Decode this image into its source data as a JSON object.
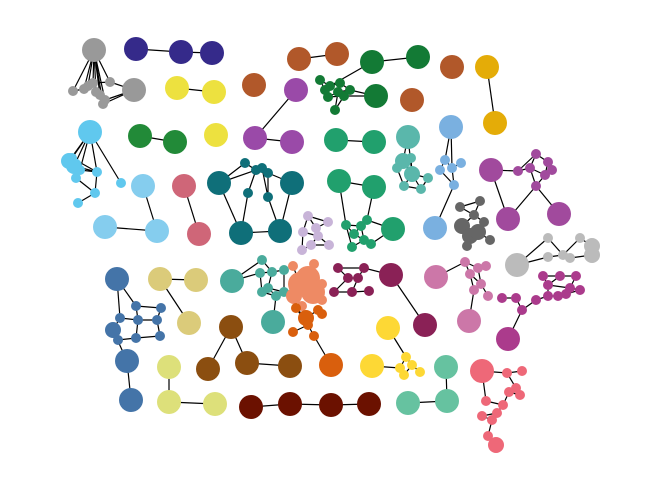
{
  "graph": {
    "directed": false,
    "edge_color": "#000000",
    "background": "#ffffff",
    "components": [
      {
        "name": "gray-star",
        "color": "#999999"
      },
      {
        "name": "navy-chain",
        "color": "#352a8a"
      },
      {
        "name": "yellow-pair",
        "color": "#ede13f"
      },
      {
        "name": "rust-chain",
        "color": "#b1582a"
      },
      {
        "name": "green-cluster",
        "color": "#137a35"
      },
      {
        "name": "amber-pair",
        "color": "#e4ac08"
      },
      {
        "name": "cyan-cluster",
        "color": "#60c8ee"
      },
      {
        "name": "forest-pair",
        "color": "#228a38"
      },
      {
        "name": "purple-chain",
        "color": "#9a4aa8"
      },
      {
        "name": "sea-green-pair",
        "color": "#21a06d"
      },
      {
        "name": "teal-light-cluster",
        "color": "#5ab7ab"
      },
      {
        "name": "sky-cluster",
        "color": "#7ab0e0"
      },
      {
        "name": "magenta-cluster",
        "color": "#a14a9d"
      },
      {
        "name": "light-blue-pair",
        "color": "#85cdee"
      },
      {
        "name": "rose-pair",
        "color": "#cf6678"
      },
      {
        "name": "teal-dark-cluster",
        "color": "#0f6f79"
      },
      {
        "name": "lavender-cluster",
        "color": "#c8b4d8"
      },
      {
        "name": "green-mesh",
        "color": "#21a06d"
      },
      {
        "name": "dark-gray-cluster",
        "color": "#666666"
      },
      {
        "name": "steel-blue-cluster",
        "color": "#4474a8"
      },
      {
        "name": "khaki-chain",
        "color": "#dbcb7a"
      },
      {
        "name": "mint-cluster",
        "color": "#4aab9c"
      },
      {
        "name": "salmon-hub",
        "color": "#ee8a64"
      },
      {
        "name": "maroon-cluster",
        "color": "#8a2156"
      },
      {
        "name": "pink-cluster",
        "color": "#cc77a8"
      },
      {
        "name": "silver-cluster",
        "color": "#bbbbbb"
      },
      {
        "name": "orchid-cluster",
        "color": "#ab3b8c"
      },
      {
        "name": "brown-chain",
        "color": "#8b4e10"
      },
      {
        "name": "orange-cluster",
        "color": "#d95f0d"
      },
      {
        "name": "gold-cluster",
        "color": "#fdd835"
      },
      {
        "name": "lime-chain",
        "color": "#dde07a"
      },
      {
        "name": "dark-red-chain",
        "color": "#6b1100"
      },
      {
        "name": "aquamarine-chain",
        "color": "#66c2a0"
      },
      {
        "name": "coral-cluster",
        "color": "#ee6878"
      }
    ]
  }
}
